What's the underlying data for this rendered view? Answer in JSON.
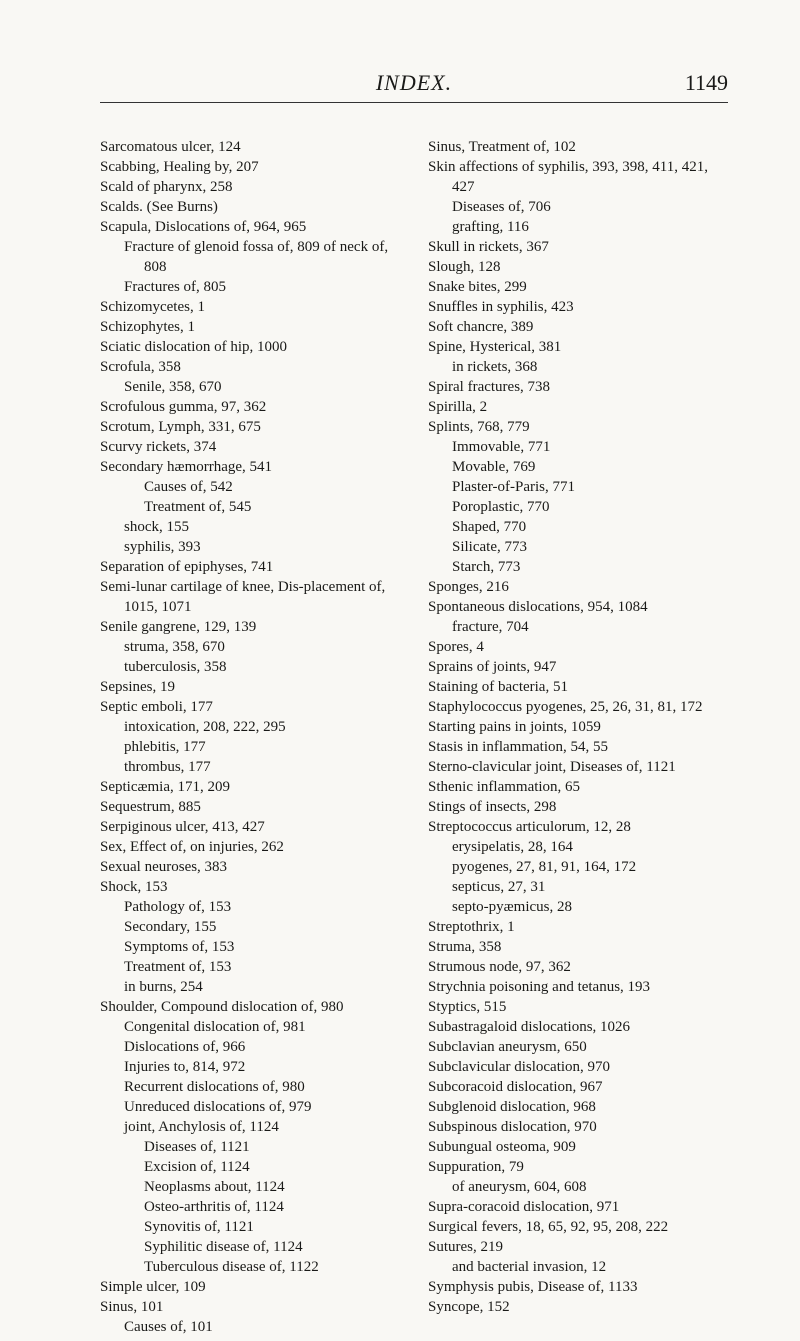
{
  "page": {
    "title": "INDEX.",
    "number": "1149"
  },
  "left": [
    {
      "t": "Sarcomatous ulcer, 124",
      "i": 1
    },
    {
      "t": "Scabbing, Healing by, 207",
      "i": 1
    },
    {
      "t": "Scald of pharynx, 258",
      "i": 1
    },
    {
      "t": "Scalds.  (See Burns)",
      "i": 1
    },
    {
      "t": "Scapula, Dislocations of, 964, 965",
      "i": 1
    },
    {
      "t": "Fracture of glenoid fossa of, 809 of neck of, 808",
      "i": 2
    },
    {
      "t": "Fractures of, 805",
      "i": 2
    },
    {
      "t": "Schizomycetes, 1",
      "i": 1
    },
    {
      "t": "Schizophytes, 1",
      "i": 1
    },
    {
      "t": "Sciatic dislocation of hip, 1000",
      "i": 1
    },
    {
      "t": "Scrofula, 358",
      "i": 1
    },
    {
      "t": "Senile, 358, 670",
      "i": 2
    },
    {
      "t": "Scrofulous gumma, 97, 362",
      "i": 1
    },
    {
      "t": "Scrotum, Lymph, 331, 675",
      "i": 1
    },
    {
      "t": "Scurvy rickets, 374",
      "i": 1
    },
    {
      "t": "Secondary hæmorrhage, 541",
      "i": 1
    },
    {
      "t": "Causes of, 542",
      "i": 3
    },
    {
      "t": "Treatment of, 545",
      "i": 3
    },
    {
      "t": "shock, 155",
      "i": 2
    },
    {
      "t": "syphilis, 393",
      "i": 2
    },
    {
      "t": "Separation of epiphyses, 741",
      "i": 1
    },
    {
      "t": "Semi-lunar cartilage of knee, Dis-placement of, 1015, 1071",
      "i": 1
    },
    {
      "t": "Senile gangrene, 129, 139",
      "i": 1
    },
    {
      "t": "struma, 358, 670",
      "i": 2
    },
    {
      "t": "tuberculosis, 358",
      "i": 2
    },
    {
      "t": "Sepsines, 19",
      "i": 1
    },
    {
      "t": "Septic emboli, 177",
      "i": 1
    },
    {
      "t": "intoxication, 208, 222, 295",
      "i": 2
    },
    {
      "t": "phlebitis, 177",
      "i": 2
    },
    {
      "t": "thrombus, 177",
      "i": 2
    },
    {
      "t": "Septicæmia, 171, 209",
      "i": 1
    },
    {
      "t": "Sequestrum, 885",
      "i": 1
    },
    {
      "t": "Serpiginous ulcer, 413, 427",
      "i": 1
    },
    {
      "t": "Sex, Effect of, on injuries, 262",
      "i": 1
    },
    {
      "t": "Sexual neuroses, 383",
      "i": 1
    },
    {
      "t": "Shock, 153",
      "i": 1
    },
    {
      "t": "Pathology of, 153",
      "i": 2
    },
    {
      "t": "Secondary, 155",
      "i": 2
    },
    {
      "t": "Symptoms of, 153",
      "i": 2
    },
    {
      "t": "Treatment of, 153",
      "i": 2
    },
    {
      "t": "in burns, 254",
      "i": 2
    },
    {
      "t": "Shoulder, Compound dislocation of, 980",
      "i": 1
    },
    {
      "t": "Congenital dislocation of, 981",
      "i": 2
    },
    {
      "t": "Dislocations of, 966",
      "i": 2
    },
    {
      "t": "Injuries to, 814, 972",
      "i": 2
    },
    {
      "t": "Recurrent dislocations of, 980",
      "i": 2
    },
    {
      "t": "Unreduced dislocations of, 979",
      "i": 2
    },
    {
      "t": "joint, Anchylosis of, 1124",
      "i": 2
    },
    {
      "t": "Diseases of, 1121",
      "i": 3
    },
    {
      "t": "Excision of, 1124",
      "i": 3
    },
    {
      "t": "Neoplasms about, 1124",
      "i": 3
    },
    {
      "t": "Osteo-arthritis of, 1124",
      "i": 3
    },
    {
      "t": "Synovitis of, 1121",
      "i": 3
    },
    {
      "t": "Syphilitic disease of, 1124",
      "i": 3
    },
    {
      "t": "Tuberculous disease of, 1122",
      "i": 3
    },
    {
      "t": "Simple ulcer, 109",
      "i": 1
    },
    {
      "t": "Sinus, 101",
      "i": 1
    },
    {
      "t": "Causes of, 101",
      "i": 2
    }
  ],
  "right": [
    {
      "t": "Sinus, Treatment of, 102",
      "i": 1
    },
    {
      "t": "Skin affections of syphilis, 393, 398, 411, 421, 427",
      "i": 1
    },
    {
      "t": "Diseases of, 706",
      "i": 2
    },
    {
      "t": "grafting, 116",
      "i": 2
    },
    {
      "t": "Skull in rickets, 367",
      "i": 1
    },
    {
      "t": "Slough, 128",
      "i": 1
    },
    {
      "t": "Snake bites, 299",
      "i": 1
    },
    {
      "t": "Snuffles in syphilis, 423",
      "i": 1
    },
    {
      "t": "Soft chancre, 389",
      "i": 1
    },
    {
      "t": "Spine, Hysterical, 381",
      "i": 1
    },
    {
      "t": "in rickets, 368",
      "i": 2
    },
    {
      "t": "Spiral fractures, 738",
      "i": 1
    },
    {
      "t": "Spirilla, 2",
      "i": 1
    },
    {
      "t": "Splints, 768, 779",
      "i": 1
    },
    {
      "t": "Immovable, 771",
      "i": 2
    },
    {
      "t": "Movable, 769",
      "i": 2
    },
    {
      "t": "Plaster-of-Paris, 771",
      "i": 2
    },
    {
      "t": "Poroplastic, 770",
      "i": 2
    },
    {
      "t": "Shaped, 770",
      "i": 2
    },
    {
      "t": "Silicate, 773",
      "i": 2
    },
    {
      "t": "Starch, 773",
      "i": 2
    },
    {
      "t": "Sponges, 216",
      "i": 1
    },
    {
      "t": "Spontaneous dislocations, 954, 1084",
      "i": 1
    },
    {
      "t": "fracture, 704",
      "i": 2
    },
    {
      "t": "Spores, 4",
      "i": 1
    },
    {
      "t": "Sprains of joints, 947",
      "i": 1
    },
    {
      "t": "Staining of bacteria, 51",
      "i": 1
    },
    {
      "t": "Staphylococcus pyogenes, 25, 26, 31, 81, 172",
      "i": 1
    },
    {
      "t": "Starting pains in joints, 1059",
      "i": 1
    },
    {
      "t": "Stasis in inflammation, 54, 55",
      "i": 1
    },
    {
      "t": "Sterno-clavicular joint, Diseases of, 1121",
      "i": 1
    },
    {
      "t": "Sthenic inflammation, 65",
      "i": 1
    },
    {
      "t": "Stings of insects, 298",
      "i": 1
    },
    {
      "t": "Streptococcus articulorum, 12, 28",
      "i": 1
    },
    {
      "t": "erysipelatis, 28, 164",
      "i": 2
    },
    {
      "t": "pyogenes, 27, 81, 91, 164, 172",
      "i": 2
    },
    {
      "t": "septicus, 27, 31",
      "i": 2
    },
    {
      "t": "septo-pyæmicus, 28",
      "i": 2
    },
    {
      "t": "Streptothrix, 1",
      "i": 1
    },
    {
      "t": "Struma, 358",
      "i": 1
    },
    {
      "t": "Strumous node, 97, 362",
      "i": 1
    },
    {
      "t": "Strychnia poisoning and tetanus, 193",
      "i": 1
    },
    {
      "t": "Styptics, 515",
      "i": 1
    },
    {
      "t": "Subastragaloid dislocations, 1026",
      "i": 1
    },
    {
      "t": "Subclavian aneurysm, 650",
      "i": 1
    },
    {
      "t": "Subclavicular dislocation, 970",
      "i": 1
    },
    {
      "t": "Subcoracoid dislocation, 967",
      "i": 1
    },
    {
      "t": "Subglenoid dislocation, 968",
      "i": 1
    },
    {
      "t": "Subspinous dislocation, 970",
      "i": 1
    },
    {
      "t": "Subungual osteoma, 909",
      "i": 1
    },
    {
      "t": "Suppuration, 79",
      "i": 1
    },
    {
      "t": "of aneurysm, 604, 608",
      "i": 2
    },
    {
      "t": "Supra-coracoid dislocation, 971",
      "i": 1
    },
    {
      "t": "Surgical fevers, 18, 65, 92, 95, 208, 222",
      "i": 1
    },
    {
      "t": "Sutures, 219",
      "i": 1
    },
    {
      "t": "and bacterial invasion, 12",
      "i": 2
    },
    {
      "t": "Symphysis pubis, Disease of, 1133",
      "i": 1
    },
    {
      "t": "Syncope, 152",
      "i": 1
    }
  ]
}
